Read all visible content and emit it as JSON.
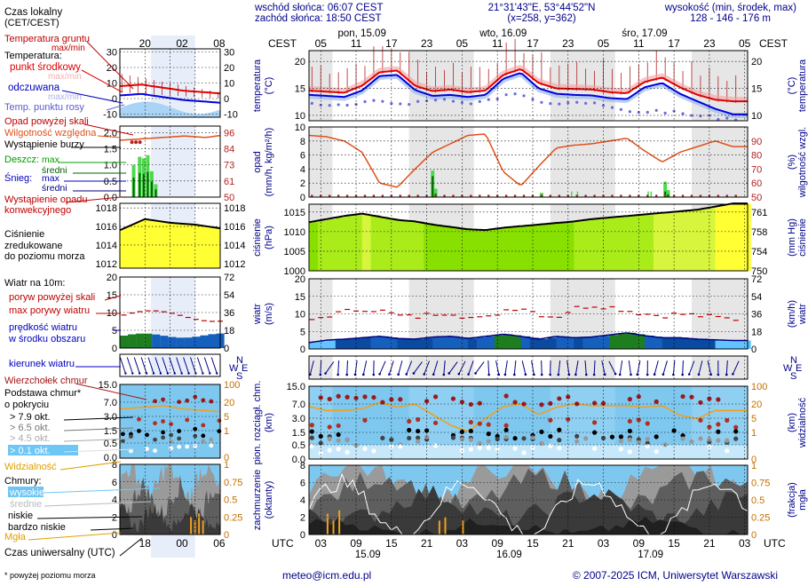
{
  "header": {
    "sunrise": "wschód słońca: 06:07 CEST",
    "sunset": "zachód słońca: 18:50 CEST",
    "coords": "21°31'43\"E, 53°44'52\"N",
    "grid": "(x=258,  y=362)",
    "height_title": "wysokość (min, środek, max)",
    "height_values": "128 - 146 - 176 m"
  },
  "time": {
    "cest": "CEST",
    "utc": "UTC",
    "top_hours": [
      "05",
      "11",
      "17",
      "23",
      "05",
      "11",
      "17",
      "23",
      "05",
      "11",
      "17",
      "23",
      "05"
    ],
    "bottom_hours": [
      "03",
      "09",
      "15",
      "21",
      "03",
      "09",
      "15",
      "21",
      "03",
      "09",
      "15",
      "21",
      "03"
    ],
    "days_top": [
      "pon, 15.09",
      "wto, 16.09",
      "śro, 17.09"
    ],
    "days_bottom": [
      "15.09",
      "16.09",
      "17.09"
    ],
    "legend_top_hours": [
      "20",
      "02",
      "08"
    ],
    "legend_bottom_hours": [
      "18",
      "00",
      "06"
    ]
  },
  "legend": {
    "local_time": "Czas lokalny",
    "local_time_2": "(CET/CEST)",
    "ground_temp": "Temperatura gruntu",
    "ground_minmax": "max/min",
    "temperature": "Temperatura:",
    "mid_point": "punkt środkowy",
    "maxmin_ghost": "max/min",
    "felt": "odczuwana",
    "felt_ghost": "max/min",
    "dewpoint": "Temp. punktu rosy",
    "precip_above": "Opad powyżej skali",
    "humidity": "Wilgotność względna",
    "thunder": "Wystąpienie burzy",
    "rain": "Deszcz:",
    "rain_max": "max",
    "rain_mean": "średni",
    "snow": "Śnieg:",
    "snow_max": "max",
    "snow_mean": "średni",
    "precip_occ": "Wystąpienie opadu",
    "precip_occ_2": "konwekcyjnego",
    "pressure_1": "Ciśnienie",
    "pressure_2": "zredukowane",
    "pressure_3": "do poziomu morza",
    "wind10": "Wiatr na 10m:",
    "gust_above": "poryw powyżej skali",
    "gust_max": "max porywy wiatru",
    "wind_mean": "prędkość wiatru",
    "wind_mean_2": "w środku obszaru",
    "wind_dir": "kierunek wiatru",
    "cb_top": "Wierzchołek chmur",
    "cloud_base": "Podstawa chmur*",
    "coverage": "o pokryciu",
    "okt79": "> 7.9 okt.",
    "okt65": "> 6.5 okt.",
    "okt45": "> 4.5 okt.",
    "okt25": "> 2.5 okt.",
    "okt01": "> 0.1 okt.",
    "visibility": "Widzialność",
    "clouds": "Chmury:",
    "cl_high": "wysokie",
    "cl_mid": "średnie",
    "cl_low": "niskie",
    "cl_vlow": "bardzo niskie",
    "fog": "Mgła",
    "utc_time": "Czas uniwersalny (UTC)",
    "footnote": "* powyżej poziomu morza"
  },
  "panels": {
    "temp": {
      "left_axis": "temperatura",
      "left_unit": "(°C)",
      "right_axis": "temperatura",
      "right_unit": "(°C)",
      "ticks": [
        "20",
        "15",
        "10"
      ],
      "legend_ticks": [
        "30",
        "20",
        "10",
        "0",
        "-10"
      ]
    },
    "precip": {
      "left_axis": "opad",
      "left_unit": "(mm/h, kg/m²/h)",
      "right_axis": "wilgotność wzgl.",
      "right_unit": "(%)",
      "left_ticks": [
        "10",
        "8",
        "6",
        "4",
        "2",
        "0"
      ],
      "right_ticks": [
        "90",
        "80",
        "70",
        "60",
        "50"
      ],
      "legend_left": [
        "2.0",
        "1.5",
        "1.0",
        "0.5",
        "0.0"
      ],
      "legend_right": [
        "96",
        "84",
        "73",
        "61",
        "50"
      ]
    },
    "pressure": {
      "left_axis": "ciśnienie",
      "left_unit": "(hPa)",
      "right_axis": "ciśnienie",
      "right_unit": "(mm Hg)",
      "left_ticks": [
        "1015",
        "1010",
        "1005",
        "1000"
      ],
      "right_ticks": [
        "761",
        "758",
        "754",
        "750"
      ],
      "legend_left": [
        "1018",
        "1016",
        "1014",
        "1012"
      ],
      "legend_right": [
        "1018",
        "1016",
        "1014",
        "1012"
      ]
    },
    "wind": {
      "left_axis": "wiatr",
      "left_unit": "(m/s)",
      "right_axis": "wiatr",
      "right_unit": "(km/h)",
      "left_ticks": [
        "20",
        "15",
        "10",
        "5",
        "0"
      ],
      "right_ticks": [
        "72",
        "54",
        "36",
        "18",
        "0"
      ],
      "legend_left": [
        "20",
        "15",
        "10",
        "5",
        "0"
      ],
      "legend_right": [
        "72",
        "54",
        "36",
        "18",
        "0"
      ]
    },
    "cloudbase": {
      "left_axis": "pion. rozciągł. chm.",
      "left_unit": "(km)",
      "right_axis": "widzialność",
      "right_unit": "(km)",
      "left_ticks": [
        "15.0",
        "7.0",
        "3.0",
        "1.5",
        "0.5",
        "0.0"
      ],
      "right_ticks": [
        "100",
        "20",
        "5",
        "1",
        "0"
      ],
      "legend_left": [
        "15.0",
        "7.0",
        "3.0",
        "1.5",
        "0.5",
        "0.0"
      ],
      "legend_right": [
        "100",
        "20",
        "5",
        "1",
        "0"
      ]
    },
    "clouds": {
      "left_axis": "zachmurzenie",
      "left_unit": "(oktanty)",
      "right_axis": "mgła",
      "right_unit": "(frakcja)",
      "left_ticks": [
        "8",
        "6",
        "4",
        "2",
        "0"
      ],
      "right_ticks": [
        "1",
        "0.75",
        "0.5",
        "0.25",
        "0"
      ],
      "legend_left": [
        "8",
        "6",
        "4",
        "2",
        "0"
      ],
      "legend_right": [
        "1",
        "0.75",
        "0.5",
        "0.25",
        "0"
      ]
    }
  },
  "compass": {
    "n": "N",
    "s": "S",
    "w": "W",
    "e": "E"
  },
  "footer": {
    "email": "meteo@icm.edu.pl",
    "copyright": "© 2007-2025 ICM, Uniwersytet Warszawski"
  },
  "chart_data": {
    "type": "line",
    "x_hours_utc": [
      0,
      3,
      6,
      9,
      12,
      15,
      18,
      21,
      24,
      27,
      30,
      33,
      36,
      39,
      42,
      45,
      48,
      51,
      54,
      57,
      60,
      63,
      66,
      69,
      72
    ],
    "series": [
      {
        "name": "punkt środkowy",
        "values": [
          14.6,
          14.4,
          14.2,
          15.5,
          18.0,
          18.3,
          15.5,
          14.5,
          14.8,
          14.3,
          14.6,
          17.5,
          18.6,
          16.0,
          15.0,
          14.9,
          14.8,
          14.3,
          14.1,
          16.2,
          17.0,
          15.2,
          13.8,
          12.9,
          12.6
        ]
      },
      {
        "name": "odczuwana",
        "values": [
          13.8,
          13.6,
          13.4,
          14.6,
          17.3,
          17.5,
          14.7,
          13.6,
          13.8,
          13.4,
          13.8,
          16.8,
          17.9,
          15.0,
          14.0,
          13.8,
          13.7,
          13.2,
          13.0,
          15.2,
          16.0,
          14.0,
          12.6,
          11.2,
          10.2
        ]
      },
      {
        "name": "Temp. punktu rosy",
        "values": [
          12.2,
          12.0,
          11.6,
          12.2,
          12.6,
          12.2,
          12.4,
          12.8,
          13.0,
          12.0,
          12.6,
          13.5,
          14.0,
          12.8,
          12.3,
          12.6,
          12.1,
          11.5,
          10.6,
          10.7,
          10.8,
          10.3,
          9.9,
          9.6,
          9.4
        ]
      },
      {
        "name": "Wilgotność względna",
        "values": [
          94,
          93,
          90,
          82,
          60,
          57,
          70,
          82,
          88,
          94,
          95,
          68,
          58,
          72,
          85,
          87,
          88,
          90,
          92,
          83,
          75,
          82,
          86,
          90,
          86
        ]
      },
      {
        "name": "Ciśnienie",
        "values": [
          1012.4,
          1013.2,
          1014.0,
          1014.6,
          1013.8,
          1013.0,
          1012.6,
          1011.8,
          1011.2,
          1010.6,
          1010.4,
          1011.0,
          1011.4,
          1011.8,
          1012.2,
          1012.6,
          1013.2,
          1013.6,
          1014.0,
          1014.4,
          1014.8,
          1015.2,
          1015.6,
          1016.4,
          1017.2
        ]
      },
      {
        "name": "prędkość wiatru",
        "values": [
          1.8,
          2.5,
          2.8,
          3.2,
          3.6,
          3.0,
          2.8,
          3.4,
          3.6,
          3.0,
          3.6,
          4.2,
          3.6,
          2.8,
          3.6,
          3.2,
          3.4,
          4.0,
          4.6,
          3.8,
          3.2,
          3.2,
          2.8,
          2.6,
          2.4
        ]
      },
      {
        "name": "max porywy wiatru",
        "values": [
          8.0,
          9.5,
          10.5,
          11.5,
          11.0,
          9.5,
          9.0,
          10.0,
          10.5,
          9.0,
          8.5,
          11.0,
          12.0,
          10.0,
          9.0,
          11.5,
          12.5,
          12.0,
          11.0,
          10.0,
          9.5,
          10.0,
          9.5,
          9.0,
          8.5
        ]
      },
      {
        "name": "Widzialność",
        "values": [
          6.5,
          6.0,
          6.0,
          6.2,
          7.0,
          6.4,
          6.8,
          5.5,
          4.2,
          3.4,
          5.0,
          6.5,
          6.8,
          5.5,
          6.4,
          6.8,
          6.6,
          6.6,
          6.6,
          6.4,
          6.6,
          5.4,
          5.0,
          6.0,
          6.0
        ]
      }
    ],
    "precip_bars": [
      {
        "t": 21.0,
        "max": 3.8,
        "mean": 3.0
      },
      {
        "t": 21.5,
        "max": 1.2,
        "mean": 0.5
      },
      {
        "t": 39.5,
        "max": 0.6,
        "mean": 0.3
      },
      {
        "t": 60.5,
        "max": 2.2,
        "mean": 0.8
      },
      {
        "t": 61.0,
        "max": 1.0,
        "mean": 0.4
      }
    ],
    "ylim_temp": [
      9,
      21
    ],
    "ylim_precip": [
      0,
      10
    ],
    "ylim_humidity": [
      50,
      100
    ],
    "ylim_pressure": [
      1000,
      1017
    ],
    "ylim_wind": [
      0,
      20
    ],
    "ylim_clouds": [
      0,
      8
    ],
    "grid": true
  }
}
